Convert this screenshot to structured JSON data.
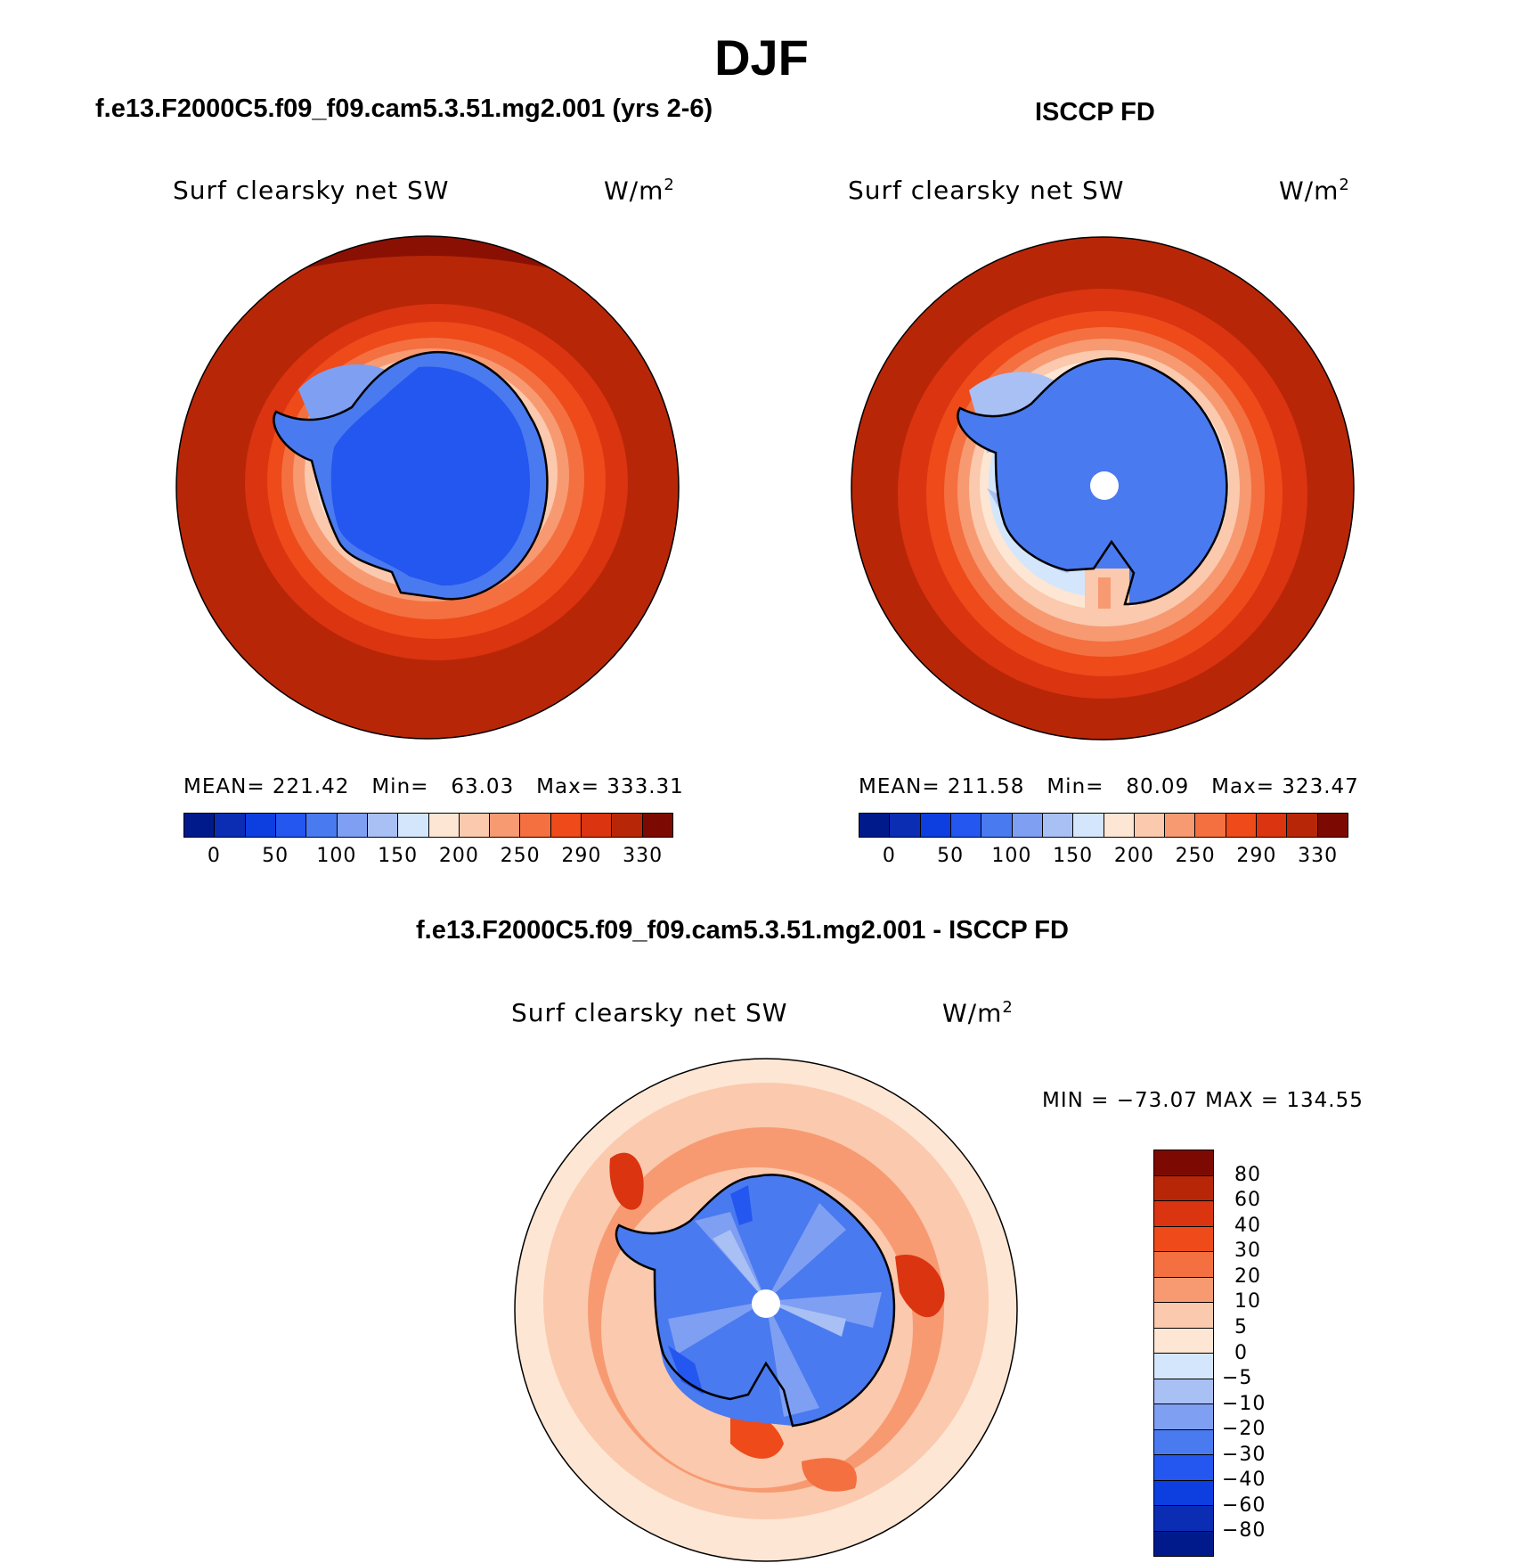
{
  "title": "DJF",
  "chart_data": [
    {
      "type": "heatmap",
      "projection": "south-polar-stereographic",
      "panel_title": "f.e13.F2000C5.f09_f09.cam5.3.51.mg2.001 (yrs 2-6)",
      "field": "Surf clearsky net SW",
      "units_base": "W/m",
      "units_exp": "2",
      "stats": {
        "mean_label": "MEAN=",
        "mean": "221.42",
        "min_label": "Min=",
        "min": "63.03",
        "max_label": "Max=",
        "max": "333.31"
      },
      "colorbar": {
        "orientation": "horizontal",
        "levels": [
          "0",
          "50",
          "100",
          "150",
          "200",
          "250",
          "290",
          "330"
        ],
        "colors": [
          "#001a8c",
          "#0a2db4",
          "#0d3ee0",
          "#2456f0",
          "#4a7af0",
          "#7f9ff2",
          "#a9c0f5",
          "#d4e6fb",
          "#fde6d4",
          "#fbc9ad",
          "#f79a72",
          "#f47040",
          "#ee4a1a",
          "#da3410",
          "#b82608",
          "#7c0a02"
        ]
      }
    },
    {
      "type": "heatmap",
      "projection": "south-polar-stereographic",
      "panel_title": "ISCCP FD",
      "field": "Surf clearsky net SW",
      "units_base": "W/m",
      "units_exp": "2",
      "stats": {
        "mean_label": "MEAN=",
        "mean": "211.58",
        "min_label": "Min=",
        "min": "80.09",
        "max_label": "Max=",
        "max": "323.47"
      },
      "colorbar": {
        "orientation": "horizontal",
        "levels": [
          "0",
          "50",
          "100",
          "150",
          "200",
          "250",
          "290",
          "330"
        ],
        "colors": [
          "#001a8c",
          "#0a2db4",
          "#0d3ee0",
          "#2456f0",
          "#4a7af0",
          "#7f9ff2",
          "#a9c0f5",
          "#d4e6fb",
          "#fde6d4",
          "#fbc9ad",
          "#f79a72",
          "#f47040",
          "#ee4a1a",
          "#da3410",
          "#b82608",
          "#7c0a02"
        ]
      }
    },
    {
      "type": "heatmap",
      "projection": "south-polar-stereographic",
      "panel_title": "f.e13.F2000C5.f09_f09.cam5.3.51.mg2.001 - ISCCP FD",
      "field": "Surf clearsky net SW",
      "units_base": "W/m",
      "units_exp": "2",
      "stats": {
        "min_label": "MIN =",
        "min": "−73.07",
        "max_label": "MAX =",
        "max": "134.55"
      },
      "colorbar": {
        "orientation": "vertical",
        "levels": [
          "80",
          "60",
          "40",
          "30",
          "20",
          "10",
          "5",
          "0",
          "−5",
          "−10",
          "−20",
          "−30",
          "−40",
          "−60",
          "−80"
        ],
        "colors": [
          "#7c0a02",
          "#b82608",
          "#da3410",
          "#ee4a1a",
          "#f47040",
          "#f79a72",
          "#fbc9ad",
          "#fde6d4",
          "#d4e6fb",
          "#a9c0f5",
          "#7f9ff2",
          "#4a7af0",
          "#2456f0",
          "#0d3ee0",
          "#0a2db4",
          "#001a8c"
        ]
      }
    }
  ]
}
